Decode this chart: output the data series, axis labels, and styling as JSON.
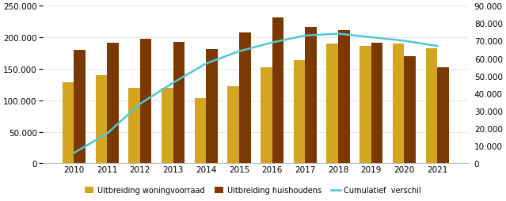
{
  "years": [
    2010,
    2011,
    2012,
    2013,
    2014,
    2015,
    2016,
    2017,
    2018,
    2019,
    2020,
    2021
  ],
  "woningvoorraad": [
    128000,
    140000,
    120000,
    120000,
    104000,
    122000,
    152000,
    164000,
    190000,
    186000,
    190000,
    183000
  ],
  "huishoudens": [
    180000,
    191000,
    198000,
    192000,
    181000,
    207000,
    232000,
    216000,
    211000,
    191000,
    170000,
    152000
  ],
  "cumulatief": [
    6000,
    17000,
    34000,
    46000,
    57000,
    64000,
    69000,
    73000,
    74000,
    72000,
    70000,
    67000
  ],
  "bar_width": 0.35,
  "color_woningvoorraad": "#D4A520",
  "color_huishoudens": "#7B3800",
  "color_cumulatief": "#4FC8D4",
  "ylim_left": [
    0,
    250000
  ],
  "ylim_right": [
    0,
    90000
  ],
  "yticks_left": [
    0,
    50000,
    100000,
    150000,
    200000,
    250000
  ],
  "yticks_right": [
    0,
    10000,
    20000,
    30000,
    40000,
    50000,
    60000,
    70000,
    80000,
    90000
  ],
  "legend_labels": [
    "Uitbreiding woningvoorraad",
    "Uitbreiding huishoudens",
    "Cumulatief  verschil"
  ],
  "background_color": "#ffffff",
  "grid_color": "#dddddd"
}
